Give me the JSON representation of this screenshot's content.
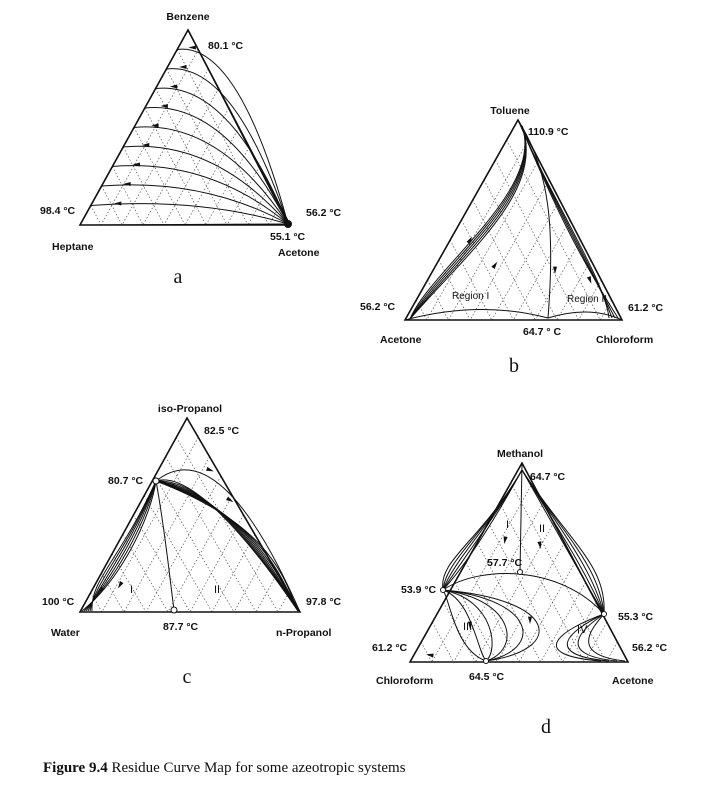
{
  "caption": {
    "label": "Figure 9.4",
    "text": " Residue Curve Map for some azeotropic systems"
  },
  "panels": {
    "a": {
      "letter": "a",
      "top": "Benzene",
      "left": "Heptane",
      "right": "Acetone",
      "t_top": "80.1 °C",
      "t_left": "98.4 °C",
      "t_right": "56.2 °C",
      "t_az": "55.1 °C"
    },
    "b": {
      "letter": "b",
      "top": "Toluene",
      "left": "Acetone",
      "right": "Chloroform",
      "t_top": "110.9 °C",
      "t_left": "56.2 °C",
      "t_right": "61.2 °C",
      "t_az": "64.7 ° C",
      "region1": "Region I",
      "region2": "Region II"
    },
    "c": {
      "letter": "c",
      "top": "iso-Propanol",
      "left": "Water",
      "right": "n-Propanol",
      "t_top": "82.5 °C",
      "t_left": "100 °C",
      "t_right": "97.8 °C",
      "t_az1": "80.7 °C",
      "t_az2": "87.7 °C",
      "r1": "I",
      "r2": "II"
    },
    "d": {
      "letter": "d",
      "top": "Methanol",
      "left": "Chloroform",
      "right": "Acetone",
      "t_top": "64.7 °C",
      "t_left": "61.2 °C",
      "t_right": "56.2 °C",
      "t_az_mid": "57.7 °C",
      "t_az_left": "53.9 °C",
      "t_az_right": "55.3 °C",
      "t_az_bottom": "64.5 °C",
      "r1": "I",
      "r2": "II",
      "r3": "III",
      "r4": "IV"
    }
  }
}
